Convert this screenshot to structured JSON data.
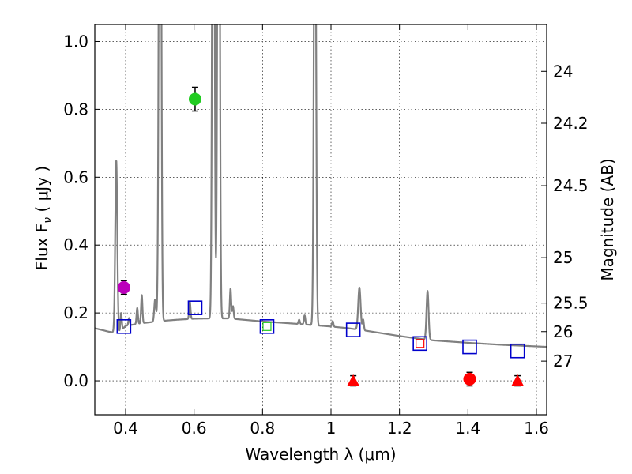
{
  "chart_data": {
    "type": "scatter",
    "xlabel": "Wavelength  λ (μm)",
    "ylabel": "Flux  F",
    "ylabel_sub": "ν",
    "ylabel_unit": "( μJy )",
    "y2label": "Magnitude (AB)",
    "xlim": [
      0.31,
      1.63
    ],
    "ylim": [
      -0.1,
      1.05
    ],
    "xticks": [
      0.4,
      0.6,
      0.8,
      1.0,
      1.2,
      1.4,
      1.6
    ],
    "xtick_labels": [
      "0.4",
      "0.6",
      "0.8",
      "1",
      "1.2",
      "1.4",
      "1.6"
    ],
    "yticks": [
      0.0,
      0.2,
      0.4,
      0.6,
      0.8,
      1.0
    ],
    "ytick_labels": [
      "0.0",
      "0.2",
      "0.4",
      "0.6",
      "0.8",
      "1.0"
    ],
    "grid": true,
    "mag_ticks": [
      {
        "label": "24",
        "flux": 0.912
      },
      {
        "label": "24.2",
        "flux": 0.759
      },
      {
        "label": "24.5",
        "flux": 0.575
      },
      {
        "label": "25",
        "flux": 0.363
      },
      {
        "label": "25.5",
        "flux": 0.229
      },
      {
        "label": "26",
        "flux": 0.145
      },
      {
        "label": "27",
        "flux": 0.058
      }
    ],
    "colors": {
      "sed": "#808080",
      "model": "#0000cc",
      "green": "#22cc22",
      "magenta": "#bb00bb",
      "red": "#ff0000"
    },
    "series": [
      {
        "name": "model SED",
        "kind": "line",
        "continuum": [
          [
            0.31,
            0.155
          ],
          [
            0.35,
            0.145
          ],
          [
            0.38,
            0.14
          ],
          [
            0.4,
            0.162
          ],
          [
            0.45,
            0.17
          ],
          [
            0.5,
            0.176
          ],
          [
            0.55,
            0.18
          ],
          [
            0.6,
            0.183
          ],
          [
            0.65,
            0.184
          ],
          [
            0.7,
            0.184
          ],
          [
            0.8,
            0.175
          ],
          [
            0.9,
            0.168
          ],
          [
            1.0,
            0.16
          ],
          [
            1.05,
            0.155
          ],
          [
            1.1,
            0.148
          ],
          [
            1.15,
            0.14
          ],
          [
            1.2,
            0.132
          ],
          [
            1.25,
            0.125
          ],
          [
            1.3,
            0.119
          ],
          [
            1.4,
            0.112
          ],
          [
            1.5,
            0.106
          ],
          [
            1.63,
            0.1
          ]
        ],
        "emission_lines": [
          {
            "x": 0.3727,
            "peak": 0.65,
            "width": 0.003
          },
          {
            "x": 0.3869,
            "peak": 0.2,
            "width": 0.002
          },
          {
            "x": 0.4101,
            "peak": 0.185,
            "width": 0.002
          },
          {
            "x": 0.434,
            "peak": 0.215,
            "width": 0.002
          },
          {
            "x": 0.4472,
            "peak": 0.253,
            "width": 0.002
          },
          {
            "x": 0.4861,
            "peak": 0.24,
            "width": 0.0025
          },
          {
            "x": 0.4959,
            "peak": 0.28,
            "width": 0.0025
          },
          {
            "x": 0.5007,
            "peak": 2.5,
            "width": 0.003
          },
          {
            "x": 0.5876,
            "peak": 0.234,
            "width": 0.002
          },
          {
            "x": 0.6563,
            "peak": 2.5,
            "width": 0.003
          },
          {
            "x": 0.6716,
            "peak": 2.5,
            "width": 0.003
          },
          {
            "x": 0.6731,
            "peak": 0.27,
            "width": 0.002
          },
          {
            "x": 0.7065,
            "peak": 0.272,
            "width": 0.002
          },
          {
            "x": 0.7136,
            "peak": 0.22,
            "width": 0.002
          },
          {
            "x": 0.9069,
            "peak": 0.18,
            "width": 0.002
          },
          {
            "x": 0.9229,
            "peak": 0.193,
            "width": 0.002
          },
          {
            "x": 0.9531,
            "peak": 1.8,
            "width": 0.003
          },
          {
            "x": 1.0049,
            "peak": 0.176,
            "width": 0.002
          },
          {
            "x": 1.083,
            "peak": 0.275,
            "width": 0.0035
          },
          {
            "x": 1.094,
            "peak": 0.18,
            "width": 0.002
          },
          {
            "x": 1.282,
            "peak": 0.265,
            "width": 0.003
          }
        ]
      },
      {
        "name": "model photometry",
        "kind": "open-square",
        "points": [
          [
            0.395,
            0.16
          ],
          [
            0.603,
            0.215
          ],
          [
            0.813,
            0.16
          ],
          [
            1.065,
            0.15
          ],
          [
            1.26,
            0.11
          ],
          [
            1.405,
            0.1
          ],
          [
            1.545,
            0.088
          ]
        ]
      },
      {
        "name": "small overlay squares",
        "kind": "small-square",
        "points": [
          {
            "x": 0.813,
            "y": 0.16,
            "color": "green"
          },
          {
            "x": 1.26,
            "y": 0.11,
            "color": "red"
          }
        ]
      },
      {
        "name": "observed photometry",
        "kind": "circle-errorbar",
        "points": [
          {
            "x": 0.395,
            "y": 0.275,
            "err": 0.02,
            "color": "magenta"
          },
          {
            "x": 0.603,
            "y": 0.83,
            "err": 0.035,
            "color": "green"
          },
          {
            "x": 1.405,
            "y": 0.005,
            "err": 0.02,
            "color": "red"
          }
        ]
      },
      {
        "name": "upper limits",
        "kind": "triangle-errorbar",
        "points": [
          {
            "x": 1.065,
            "y": 0.0,
            "err": 0.015,
            "color": "red"
          },
          {
            "x": 1.545,
            "y": 0.0,
            "err": 0.015,
            "color": "red"
          }
        ]
      }
    ]
  }
}
